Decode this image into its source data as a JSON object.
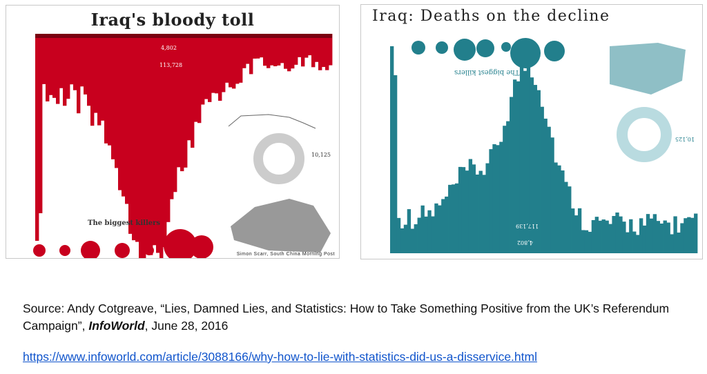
{
  "left_image": {
    "title": "Iraq's bloody toll",
    "coalition_deaths": "4,802",
    "civilian_deaths": "113,728",
    "iraqi_security_forces": "10,125",
    "section_title": "The biggest killers",
    "credit": "Simon Scarr, South China Morning Post",
    "color": "#c8001e"
  },
  "right_image": {
    "title": "Iraq: Deaths on the decline",
    "section_title": "The biggest killers",
    "civilian_deaths": "117,139",
    "coalition_deaths": "4,802",
    "iraqi_security_forces": "10,125",
    "color": "#227f8c"
  },
  "caption": {
    "source_prefix": "Source: Andy Cotgreave, “Lies, Damned Lies, and Statistics: How to Take Something Positive from the UK’s Referendum Campaign”, ",
    "publication": "InfoWorld",
    "date_suffix": ", June 28, 2016",
    "url": "https://www.infoworld.com/article/3088166/why-how-to-lie-with-statistics-did-us-a-disservice.html"
  }
}
